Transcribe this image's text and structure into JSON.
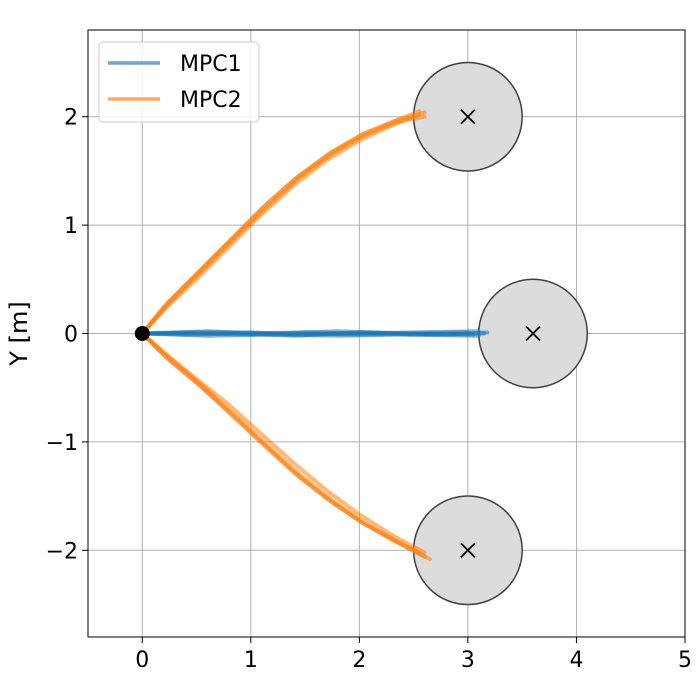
{
  "chart_data": {
    "type": "line",
    "title": "",
    "xlabel": "",
    "ylabel": "Y [m]",
    "xlim": [
      -0.5,
      5
    ],
    "ylim": [
      -2.8,
      2.8
    ],
    "xticks": [
      0,
      1,
      2,
      3,
      4,
      5
    ],
    "yticks": [
      -2,
      -1,
      0,
      1,
      2
    ],
    "xtick_labels": [
      "0",
      "1",
      "2",
      "3",
      "4",
      "5"
    ],
    "ytick_labels": [
      "−2",
      "−1",
      "0",
      "1",
      "2"
    ],
    "grid": true,
    "legend_position": "top-left",
    "legend": [
      {
        "label": "MPC1",
        "color": "#1f77b4"
      },
      {
        "label": "MPC2",
        "color": "#ff7f0e"
      }
    ],
    "start_point": {
      "x": 0,
      "y": 0,
      "color": "#000000"
    },
    "targets": [
      {
        "x": 3.0,
        "y": 2.0,
        "radius": 0.5,
        "fill": "#dcdcdc",
        "edge": "#404040"
      },
      {
        "x": 3.6,
        "y": 0.0,
        "radius": 0.5,
        "fill": "#dcdcdc",
        "edge": "#404040"
      },
      {
        "x": 3.0,
        "y": -2.0,
        "radius": 0.5,
        "fill": "#dcdcdc",
        "edge": "#404040"
      }
    ],
    "series": [
      {
        "name": "MPC1",
        "color": "#1f77b4",
        "trajectories": [
          [
            [
              0,
              0
            ],
            [
              0.5,
              0.01
            ],
            [
              1.0,
              0.0
            ],
            [
              1.5,
              0.01
            ],
            [
              2.0,
              0.0
            ],
            [
              2.5,
              0.01
            ],
            [
              3.1,
              0.02
            ]
          ],
          [
            [
              0,
              0
            ],
            [
              0.5,
              -0.01
            ],
            [
              1.0,
              0.01
            ],
            [
              1.5,
              -0.01
            ],
            [
              2.0,
              0.01
            ],
            [
              2.5,
              -0.01
            ],
            [
              3.15,
              0.0
            ]
          ],
          [
            [
              0,
              0
            ],
            [
              0.5,
              0.0
            ],
            [
              1.0,
              -0.01
            ],
            [
              1.5,
              0.0
            ],
            [
              2.0,
              -0.01
            ],
            [
              2.5,
              0.0
            ],
            [
              3.05,
              -0.01
            ]
          ],
          [
            [
              0,
              0
            ],
            [
              0.6,
              0.02
            ],
            [
              1.2,
              0.0
            ],
            [
              1.8,
              0.02
            ],
            [
              2.4,
              0.0
            ],
            [
              3.0,
              0.01
            ]
          ],
          [
            [
              0,
              0
            ],
            [
              0.6,
              -0.02
            ],
            [
              1.2,
              -0.01
            ],
            [
              1.8,
              -0.02
            ],
            [
              2.4,
              -0.01
            ],
            [
              3.1,
              -0.02
            ]
          ],
          [
            [
              0,
              0
            ],
            [
              0.7,
              0.01
            ],
            [
              1.4,
              -0.02
            ],
            [
              2.1,
              0.01
            ],
            [
              2.8,
              -0.01
            ],
            [
              3.18,
              0.01
            ]
          ]
        ]
      },
      {
        "name": "MPC2",
        "color": "#ff7f0e",
        "trajectories": [
          [
            [
              0,
              0
            ],
            [
              0.2,
              0.25
            ],
            [
              0.5,
              0.55
            ],
            [
              0.8,
              0.85
            ],
            [
              1.1,
              1.15
            ],
            [
              1.4,
              1.42
            ],
            [
              1.7,
              1.64
            ],
            [
              2.0,
              1.82
            ],
            [
              2.3,
              1.95
            ],
            [
              2.55,
              2.05
            ]
          ],
          [
            [
              0,
              0
            ],
            [
              0.25,
              0.3
            ],
            [
              0.55,
              0.6
            ],
            [
              0.85,
              0.9
            ],
            [
              1.15,
              1.2
            ],
            [
              1.45,
              1.46
            ],
            [
              1.75,
              1.68
            ],
            [
              2.05,
              1.85
            ],
            [
              2.35,
              1.97
            ],
            [
              2.55,
              2.02
            ]
          ],
          [
            [
              0,
              0
            ],
            [
              0.2,
              0.22
            ],
            [
              0.5,
              0.5
            ],
            [
              0.8,
              0.8
            ],
            [
              1.1,
              1.1
            ],
            [
              1.4,
              1.37
            ],
            [
              1.7,
              1.6
            ],
            [
              2.0,
              1.78
            ],
            [
              2.3,
              1.92
            ],
            [
              2.6,
              2.04
            ]
          ],
          [
            [
              0,
              0
            ],
            [
              0.25,
              0.28
            ],
            [
              0.55,
              0.58
            ],
            [
              0.85,
              0.88
            ],
            [
              1.15,
              1.17
            ],
            [
              1.45,
              1.44
            ],
            [
              1.75,
              1.66
            ],
            [
              2.05,
              1.83
            ],
            [
              2.35,
              1.95
            ],
            [
              2.6,
              2.0
            ]
          ],
          [
            [
              0,
              0
            ],
            [
              0.2,
              -0.2
            ],
            [
              0.5,
              -0.45
            ],
            [
              0.8,
              -0.72
            ],
            [
              1.1,
              -1.0
            ],
            [
              1.4,
              -1.28
            ],
            [
              1.7,
              -1.52
            ],
            [
              2.0,
              -1.73
            ],
            [
              2.3,
              -1.9
            ],
            [
              2.55,
              -2.02
            ]
          ],
          [
            [
              0,
              0
            ],
            [
              0.25,
              -0.25
            ],
            [
              0.55,
              -0.5
            ],
            [
              0.85,
              -0.78
            ],
            [
              1.15,
              -1.06
            ],
            [
              1.45,
              -1.33
            ],
            [
              1.75,
              -1.56
            ],
            [
              2.05,
              -1.76
            ],
            [
              2.35,
              -1.93
            ],
            [
              2.6,
              -2.06
            ]
          ],
          [
            [
              0,
              0
            ],
            [
              0.2,
              -0.18
            ],
            [
              0.5,
              -0.42
            ],
            [
              0.8,
              -0.66
            ],
            [
              1.1,
              -0.93
            ],
            [
              1.4,
              -1.2
            ],
            [
              1.7,
              -1.45
            ],
            [
              2.0,
              -1.67
            ],
            [
              2.3,
              -1.86
            ],
            [
              2.6,
              -2.02
            ]
          ],
          [
            [
              0,
              0
            ],
            [
              0.25,
              -0.22
            ],
            [
              0.55,
              -0.48
            ],
            [
              0.85,
              -0.75
            ],
            [
              1.15,
              -1.03
            ],
            [
              1.45,
              -1.3
            ],
            [
              1.75,
              -1.54
            ],
            [
              2.05,
              -1.75
            ],
            [
              2.35,
              -1.92
            ],
            [
              2.65,
              -2.08
            ]
          ]
        ]
      }
    ]
  }
}
